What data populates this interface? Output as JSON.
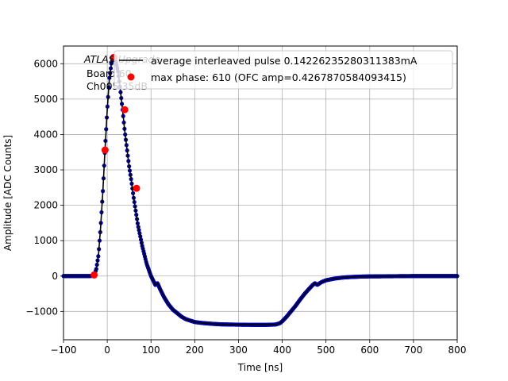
{
  "chart_data": {
    "type": "scatter",
    "xlabel": "Time [ns]",
    "ylabel": "Amplitude [ADC Counts]",
    "xlim": [
      -100,
      800
    ],
    "ylim": [
      -1800,
      6500
    ],
    "xticks": [
      -100,
      0,
      100,
      200,
      300,
      400,
      500,
      600,
      700,
      800
    ],
    "yticks": [
      -1000,
      0,
      1000,
      2000,
      3000,
      4000,
      5000,
      6000
    ],
    "grid": true,
    "legend_position": "top-right",
    "annotation": {
      "line1": "ATLAS Upgrade",
      "line2": "Board 60",
      "line3": "Ch005 35dB"
    },
    "series": [
      {
        "name": "average interleaved pulse 0.14226235280311383mA",
        "style": "line-with-markers",
        "line_color": "#000000",
        "marker_color": "#0000aa",
        "x": [
          -100,
          -60,
          -40,
          -30,
          -25,
          -20,
          -15,
          -10,
          -5,
          0,
          5,
          10,
          15,
          20,
          25,
          30,
          35,
          40,
          45,
          50,
          55,
          60,
          65,
          70,
          75,
          80,
          90,
          100,
          110,
          115,
          120,
          130,
          140,
          150,
          160,
          170,
          180,
          190,
          200,
          220,
          240,
          260,
          280,
          300,
          320,
          340,
          360,
          375,
          385,
          390,
          395,
          400,
          410,
          420,
          430,
          440,
          450,
          460,
          470,
          475,
          480,
          490,
          500,
          520,
          540,
          560,
          580,
          600,
          650,
          700,
          750,
          800
        ],
        "y": [
          0,
          0,
          0,
          10,
          200,
          600,
          1400,
          2400,
          3600,
          4700,
          5600,
          6050,
          6180,
          6050,
          5750,
          5250,
          4700,
          4100,
          3600,
          3100,
          2700,
          2250,
          1850,
          1450,
          1150,
          850,
          350,
          0,
          -250,
          -200,
          -350,
          -600,
          -800,
          -950,
          -1050,
          -1150,
          -1220,
          -1260,
          -1300,
          -1330,
          -1350,
          -1365,
          -1370,
          -1375,
          -1378,
          -1380,
          -1380,
          -1375,
          -1370,
          -1350,
          -1330,
          -1280,
          -1150,
          -1000,
          -850,
          -680,
          -520,
          -380,
          -250,
          -200,
          -250,
          -170,
          -120,
          -70,
          -40,
          -25,
          -15,
          -10,
          -5,
          0,
          0,
          0
        ]
      },
      {
        "name": "max phase: 610 (OFC amp=0.4267870584093415)",
        "style": "markers",
        "marker_color": "#ff0000",
        "x": [
          -30,
          -5,
          15,
          40,
          67
        ],
        "y": [
          30,
          3560,
          6180,
          4700,
          2480
        ]
      }
    ]
  }
}
